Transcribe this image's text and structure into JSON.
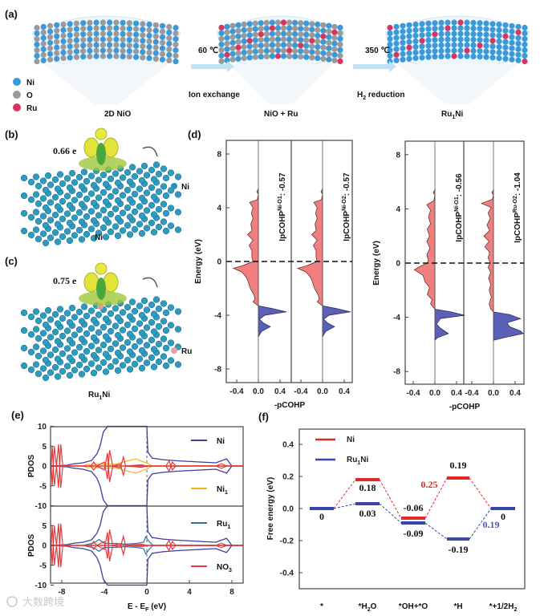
{
  "panel_labels": {
    "a": "(a)",
    "b": "(b)",
    "c": "(c)",
    "d": "(d)",
    "e": "(e)",
    "f": "(f)"
  },
  "panel_a": {
    "legend": [
      {
        "label": "Ni",
        "color": "#3a9ad9"
      },
      {
        "label": "O",
        "color": "#9a9a9a"
      },
      {
        "label": "Ru",
        "color": "#d8345f"
      }
    ],
    "step1": {
      "temp": "60 ℃",
      "process": "Ion exchange"
    },
    "step2": {
      "temp": "350 ℃",
      "process_main": "H",
      "process_sub": "2",
      "process_rest": " reduction"
    },
    "stage1": "2D NiO",
    "stage2": "NiO + Ru",
    "stage3": {
      "main": "Ru",
      "sub": "1",
      "rest": "Ni"
    }
  },
  "panel_b": {
    "charge": "0.66 e",
    "atom_label": "Ni",
    "caption": "Ni"
  },
  "panel_c": {
    "charge": "0.75 e",
    "atom_label": "Ru",
    "caption": {
      "main": "Ru",
      "sub": "1",
      "rest": "Ni"
    }
  },
  "watermark": "大数跨境",
  "chart_data": [
    {
      "id": "d",
      "type": "area",
      "ylabel": "Energy (eV)",
      "xlabel": "-pCOHP",
      "yticks": [
        "8",
        "4",
        "0",
        "-4",
        "-8"
      ],
      "xticks": [
        "-0.4",
        "0.0",
        "0.4"
      ],
      "ylim": [
        -9,
        9
      ],
      "xlim": [
        -0.6,
        0.6
      ],
      "fermi_line": 0,
      "colors": {
        "antibonding": "#f08080",
        "bonding": "#5a5fb8"
      },
      "subplots": [
        {
          "label_main": "IpCOHP",
          "label_sup": "Ni-O1",
          "label_value": ": -0.57",
          "antibonding": [
            [
              5.4,
              0
            ],
            [
              5.2,
              -0.03
            ],
            [
              5.0,
              0
            ],
            [
              4.6,
              -0.02
            ],
            [
              4.4,
              -0.16
            ],
            [
              4.0,
              -0.1
            ],
            [
              3.6,
              -0.13
            ],
            [
              3.2,
              -0.1
            ],
            [
              2.8,
              -0.14
            ],
            [
              2.3,
              -0.12
            ],
            [
              2.0,
              -0.2
            ],
            [
              1.6,
              -0.1
            ],
            [
              1.2,
              -0.17
            ],
            [
              0.8,
              -0.12
            ],
            [
              0.3,
              -0.12
            ],
            [
              0,
              -0.1
            ],
            [
              -0.3,
              -0.28
            ],
            [
              -0.5,
              -0.46
            ],
            [
              -0.8,
              -0.3
            ],
            [
              -1.2,
              -0.22
            ],
            [
              -1.6,
              -0.18
            ],
            [
              -2.0,
              -0.15
            ],
            [
              -2.5,
              -0.08
            ],
            [
              -2.8,
              -0.06
            ],
            [
              -3.0,
              -0.1
            ],
            [
              -3.3,
              0
            ]
          ],
          "bonding": [
            [
              -3.3,
              0
            ],
            [
              -3.5,
              0.25
            ],
            [
              -3.75,
              0.52
            ],
            [
              -4.0,
              0.12
            ],
            [
              -4.3,
              0.02
            ],
            [
              -4.6,
              0.1
            ],
            [
              -4.85,
              0.22
            ],
            [
              -5.2,
              0.06
            ],
            [
              -5.6,
              0
            ]
          ]
        },
        {
          "label_main": "IpCOHP",
          "label_sup": "Ni-O2",
          "label_value": ": -0.57",
          "antibonding": [
            [
              5.4,
              0
            ],
            [
              5.2,
              -0.03
            ],
            [
              5.0,
              0
            ],
            [
              4.6,
              -0.02
            ],
            [
              4.4,
              -0.16
            ],
            [
              4.0,
              -0.1
            ],
            [
              3.6,
              -0.13
            ],
            [
              3.2,
              -0.1
            ],
            [
              2.8,
              -0.14
            ],
            [
              2.3,
              -0.12
            ],
            [
              2.0,
              -0.2
            ],
            [
              1.6,
              -0.1
            ],
            [
              1.2,
              -0.17
            ],
            [
              0.8,
              -0.12
            ],
            [
              0.3,
              -0.12
            ],
            [
              0,
              -0.1
            ],
            [
              -0.3,
              -0.28
            ],
            [
              -0.5,
              -0.46
            ],
            [
              -0.8,
              -0.3
            ],
            [
              -1.2,
              -0.22
            ],
            [
              -1.6,
              -0.18
            ],
            [
              -2.0,
              -0.15
            ],
            [
              -2.5,
              -0.08
            ],
            [
              -2.8,
              -0.06
            ],
            [
              -3.0,
              -0.1
            ],
            [
              -3.3,
              0
            ]
          ],
          "bonding": [
            [
              -3.3,
              0
            ],
            [
              -3.5,
              0.25
            ],
            [
              -3.75,
              0.52
            ],
            [
              -4.0,
              0.12
            ],
            [
              -4.3,
              0.02
            ],
            [
              -4.6,
              0.1
            ],
            [
              -4.85,
              0.22
            ],
            [
              -5.2,
              0.06
            ],
            [
              -5.6,
              0
            ]
          ]
        },
        {
          "label_main": "IpCOHP",
          "label_sup": "Ni-O1",
          "label_value": ": -0.56",
          "antibonding": [
            [
              5.4,
              0
            ],
            [
              5.2,
              -0.03
            ],
            [
              5.0,
              0
            ],
            [
              4.6,
              -0.02
            ],
            [
              4.3,
              -0.15
            ],
            [
              3.9,
              -0.08
            ],
            [
              3.4,
              -0.12
            ],
            [
              2.9,
              -0.08
            ],
            [
              2.5,
              -0.14
            ],
            [
              2.0,
              -0.1
            ],
            [
              1.6,
              -0.15
            ],
            [
              1.1,
              -0.09
            ],
            [
              0.6,
              -0.15
            ],
            [
              0.2,
              -0.12
            ],
            [
              0,
              -0.14
            ],
            [
              -0.3,
              -0.3
            ],
            [
              -0.5,
              -0.38
            ],
            [
              -0.9,
              -0.22
            ],
            [
              -1.4,
              -0.18
            ],
            [
              -1.8,
              -0.1
            ],
            [
              -2.3,
              -0.14
            ],
            [
              -2.7,
              -0.05
            ],
            [
              -3.0,
              -0.08
            ],
            [
              -3.4,
              0
            ]
          ],
          "bonding": [
            [
              -3.4,
              0
            ],
            [
              -3.6,
              0.3
            ],
            [
              -3.85,
              0.55
            ],
            [
              -4.1,
              0.1
            ],
            [
              -4.5,
              0.03
            ],
            [
              -4.8,
              0.1
            ],
            [
              -5.2,
              0.25
            ],
            [
              -5.5,
              0.05
            ],
            [
              -5.7,
              0
            ]
          ]
        },
        {
          "label_main": "IpCOHP",
          "label_sup": "Ru-O2",
          "label_value": ": -1.04",
          "antibonding": [
            [
              5.4,
              0
            ],
            [
              5.2,
              -0.03
            ],
            [
              5.0,
              0
            ],
            [
              4.7,
              -0.02
            ],
            [
              4.4,
              -0.22
            ],
            [
              4.1,
              -0.04
            ],
            [
              3.7,
              -0.1
            ],
            [
              3.3,
              -0.06
            ],
            [
              2.8,
              -0.12
            ],
            [
              2.4,
              -0.07
            ],
            [
              2.0,
              -0.18
            ],
            [
              1.6,
              -0.08
            ],
            [
              1.2,
              -0.16
            ],
            [
              0.8,
              -0.07
            ],
            [
              0.4,
              -0.1
            ],
            [
              0,
              -0.06
            ],
            [
              -0.3,
              -0.1
            ],
            [
              -0.7,
              -0.05
            ],
            [
              -1.1,
              -0.09
            ],
            [
              -1.6,
              -0.05
            ],
            [
              -2.0,
              -0.08
            ],
            [
              -2.5,
              -0.04
            ],
            [
              -3.0,
              -0.08
            ],
            [
              -3.4,
              -0.05
            ],
            [
              -3.6,
              0
            ]
          ],
          "bonding": [
            [
              -3.6,
              0
            ],
            [
              -3.8,
              0.3
            ],
            [
              -4.1,
              0.5
            ],
            [
              -4.4,
              0.25
            ],
            [
              -4.7,
              0.3
            ],
            [
              -5.0,
              0.5
            ],
            [
              -5.2,
              0.55
            ],
            [
              -5.5,
              0.2
            ],
            [
              -5.7,
              0
            ]
          ]
        }
      ]
    },
    {
      "id": "e",
      "type": "line",
      "xlabel_main": "E - E",
      "xlabel_sub": "F",
      "xlabel_rest": " (eV)",
      "ylabel": "PDOS",
      "xticks": [
        "-8",
        "-4",
        "0",
        "4",
        "8"
      ],
      "yticks_top": [
        "10",
        "5",
        "0",
        "-5",
        "-10"
      ],
      "yticks_bottom": [
        "5",
        "0",
        "-5",
        "-10"
      ],
      "xlim": [
        -9,
        9
      ],
      "ylim": [
        -10,
        10
      ],
      "fermi_line": 0,
      "legend": [
        {
          "label_main": "Ni",
          "label_sub": "",
          "color": "#3a3f9a"
        },
        {
          "label_main": "Ni",
          "label_sub": "1",
          "color": "#f2b31c"
        },
        {
          "label_main": "Ru",
          "label_sub": "1",
          "color": "#2f6fb0"
        },
        {
          "label_main": "NO",
          "label_sub": "3",
          "color": "#e23b3b"
        }
      ],
      "ni_up": [
        [
          -9,
          0
        ],
        [
          -7.5,
          0.2
        ],
        [
          -7,
          0.5
        ],
        [
          -6,
          0.8
        ],
        [
          -5.2,
          1.4
        ],
        [
          -4.7,
          3
        ],
        [
          -4.4,
          5
        ],
        [
          -4.1,
          8.5
        ],
        [
          -3.7,
          10
        ],
        [
          -3,
          10.5
        ],
        [
          0,
          10.5
        ],
        [
          0.1,
          3.5
        ],
        [
          0.5,
          2
        ],
        [
          1.5,
          1.6
        ],
        [
          3,
          1.3
        ],
        [
          5,
          1
        ],
        [
          6.5,
          0.8
        ],
        [
          7.5,
          1.8
        ],
        [
          8,
          0
        ],
        [
          9,
          0
        ]
      ],
      "nitrate": [
        [
          -9,
          0
        ],
        [
          -8.9,
          5
        ],
        [
          -8.7,
          -5
        ],
        [
          -8.5,
          0
        ],
        [
          -8.3,
          -5.5
        ],
        [
          -8.1,
          5.5
        ],
        [
          -7.9,
          0
        ],
        [
          -5.3,
          0
        ],
        [
          -5,
          1
        ],
        [
          -4.7,
          0
        ],
        [
          -4,
          -1
        ],
        [
          -3.7,
          3.3
        ],
        [
          -3.5,
          -4
        ],
        [
          -3.2,
          0
        ],
        [
          -2.5,
          0.5
        ],
        [
          -2.2,
          -2.3
        ],
        [
          -2,
          0
        ],
        [
          -0.5,
          0.3
        ],
        [
          0,
          0
        ],
        [
          1.8,
          0
        ],
        [
          2.1,
          1.3
        ],
        [
          2.4,
          -1
        ],
        [
          2.7,
          0
        ],
        [
          6.5,
          0
        ],
        [
          7,
          0.6
        ],
        [
          7.5,
          0
        ],
        [
          9,
          0
        ]
      ],
      "ni1": [
        [
          -6,
          0
        ],
        [
          -5.5,
          -0.5
        ],
        [
          -5,
          0.4
        ],
        [
          -4,
          0.5
        ],
        [
          -3,
          0.4
        ],
        [
          -2.2,
          1
        ],
        [
          -1.5,
          1.5
        ],
        [
          -1,
          1.8
        ],
        [
          -0.5,
          1.2
        ],
        [
          0,
          0.8
        ],
        [
          0.5,
          0
        ],
        [
          9,
          0
        ]
      ],
      "ru1": [
        [
          -6,
          0
        ],
        [
          -5,
          0.6
        ],
        [
          -4.5,
          1.5
        ],
        [
          -4,
          0.5
        ],
        [
          -3,
          0.5
        ],
        [
          -2,
          0.3
        ],
        [
          -1,
          0.5
        ],
        [
          -0.3,
          0.8
        ],
        [
          -0.1,
          2.2
        ],
        [
          0.2,
          1
        ],
        [
          0.6,
          0
        ],
        [
          9,
          0
        ]
      ]
    },
    {
      "id": "f",
      "type": "line",
      "ylabel": "Free energy (eV)",
      "categories": [
        "*",
        "*H2O",
        "*OH+*O",
        "*H",
        "*+1/2H2"
      ],
      "category_parts": [
        {
          "main": "*",
          "sub": "",
          "rest": ""
        },
        {
          "main": "*H",
          "sub": "2",
          "rest": "O"
        },
        {
          "main": "*OH+*O",
          "sub": "",
          "rest": ""
        },
        {
          "main": "*H",
          "sub": "",
          "rest": ""
        },
        {
          "main": "*+1/2H",
          "sub": "2",
          "rest": ""
        }
      ],
      "yticks": [
        "0.4",
        "0.2",
        "0.0",
        "-0.2",
        "-0.4"
      ],
      "ylim": [
        -0.5,
        0.5
      ],
      "series": [
        {
          "name_main": "Ni",
          "name_sub": "",
          "name_rest": "",
          "color": "#e02a2a",
          "values": [
            0,
            0.18,
            -0.06,
            0.19,
            0
          ],
          "labels": [
            "",
            "0.18",
            "-0.06",
            "0.19",
            ""
          ]
        },
        {
          "name_main": "Ru",
          "name_sub": "1",
          "name_rest": "Ni",
          "color": "#3a45a8",
          "values": [
            0,
            0.03,
            -0.09,
            -0.19,
            0
          ],
          "labels": [
            "0",
            "0.03",
            "-0.09",
            "-0.19",
            "0"
          ]
        }
      ],
      "annotations": [
        {
          "text": "0.25",
          "color": "#e02a2a"
        },
        {
          "text": "0.19",
          "color": "#4a55b8"
        }
      ]
    }
  ]
}
